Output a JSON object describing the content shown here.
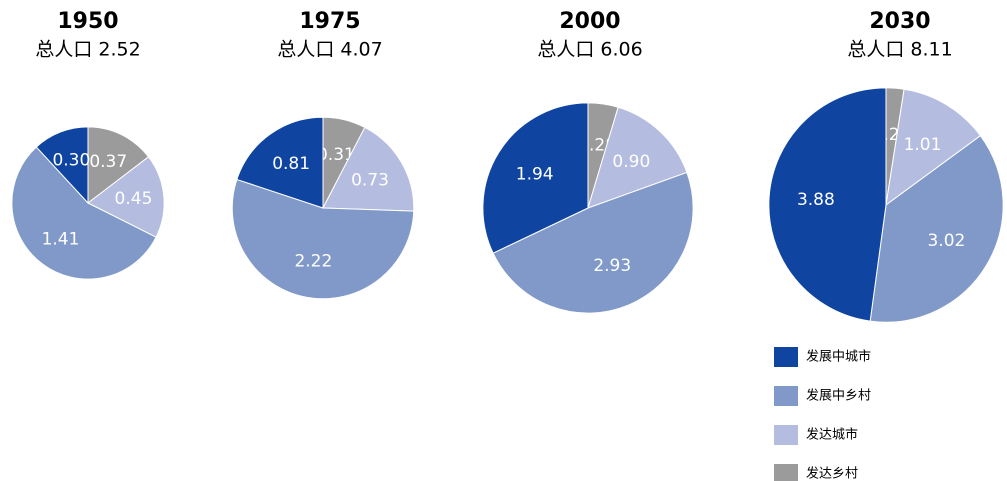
{
  "chart_data": [
    {
      "type": "pie",
      "title": "1950",
      "subtitle": "总人口 2.52",
      "values": [
        0.37,
        0.45,
        1.41,
        0.3
      ],
      "value_labels": [
        "0.37",
        "0.45",
        "1.41",
        "0.30"
      ]
    },
    {
      "type": "pie",
      "title": "1975",
      "subtitle": "总人口 4.07",
      "values": [
        0.31,
        0.73,
        2.22,
        0.81
      ],
      "value_labels": [
        "0.31",
        "0.73",
        "2.22",
        "0.81"
      ]
    },
    {
      "type": "pie",
      "title": "2000",
      "subtitle": "总人口 6.06",
      "values": [
        0.28,
        0.9,
        2.93,
        1.94
      ],
      "value_labels": [
        "0.28",
        "0.90",
        "2.93",
        "1.94"
      ]
    },
    {
      "type": "pie",
      "title": "2030",
      "subtitle": "总人口 8.11",
      "values": [
        0.2,
        1.01,
        3.02,
        3.88
      ],
      "value_labels": [
        "0.20",
        "1.01",
        "3.02",
        "3.88"
      ]
    }
  ],
  "legend": {
    "labels": [
      "发达乡村",
      "发达城市",
      "发展中乡村",
      "发展中城市"
    ],
    "colors": [
      "#9b9b9b",
      "#b4bde0",
      "#8199c9",
      "#0f45a0"
    ]
  }
}
